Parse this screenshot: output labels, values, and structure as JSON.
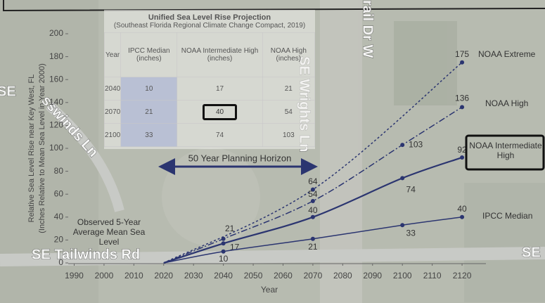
{
  "chart_data": {
    "type": "line",
    "x_label": "Year",
    "y_label": [
      "Relative Sea Level Rise near Key West, FL",
      "(Inches Relative to Mean Sea Level in Year 2000)"
    ],
    "xlim": [
      1988,
      2128
    ],
    "xticks": [
      1990,
      2000,
      2010,
      2020,
      2030,
      2040,
      2050,
      2060,
      2070,
      2080,
      2090,
      2100,
      2110,
      2120
    ],
    "ylim": [
      0,
      200
    ],
    "yticks": [
      0,
      20,
      40,
      60,
      80,
      100,
      120,
      140,
      160,
      180,
      200
    ],
    "series": [
      {
        "name": "NOAA Extreme",
        "color": "#2b3570",
        "line_style": "dotted",
        "x": [
          2020,
          2070,
          2120
        ],
        "values": [
          0,
          64,
          175
        ]
      },
      {
        "name": "NOAA High",
        "color": "#2b3570",
        "line_style": "dash-dot",
        "x": [
          2020,
          2040,
          2070,
          2100,
          2120
        ],
        "values": [
          0,
          21,
          54,
          103,
          136
        ]
      },
      {
        "name": "NOAA Intermediate High",
        "color": "#2b3570",
        "line_style": "solid",
        "x": [
          2020,
          2040,
          2070,
          2100,
          2120
        ],
        "values": [
          0,
          17,
          40,
          74,
          92
        ]
      },
      {
        "name": "IPCC Median",
        "color": "#2b3570",
        "line_style": "solid",
        "x": [
          2020,
          2040,
          2070,
          2100,
          2120
        ],
        "values": [
          0,
          10,
          21,
          33,
          40
        ]
      }
    ],
    "annotations": [
      "50 Year Planning Horizon",
      "Observed 5-Year Average Mean Sea Level"
    ]
  },
  "table": {
    "title": "Unified Sea Level Rise Projection",
    "subtitle": "(Southeast Florida Regional Climate Change Compact, 2019)",
    "columns": [
      "Year",
      "IPCC Median (inches)",
      "NOAA Intermediate High (inches)",
      "NOAA High (inches)"
    ],
    "rows": [
      [
        2040,
        10,
        17,
        21
      ],
      [
        2070,
        21,
        40,
        54
      ],
      [
        2100,
        33,
        74,
        103
      ]
    ]
  },
  "map_labels": [
    "SE Wrights Ln",
    "rail Dr W",
    "SE Tailwinds Rd",
    "SE",
    "sswinds Ln",
    "SE"
  ]
}
